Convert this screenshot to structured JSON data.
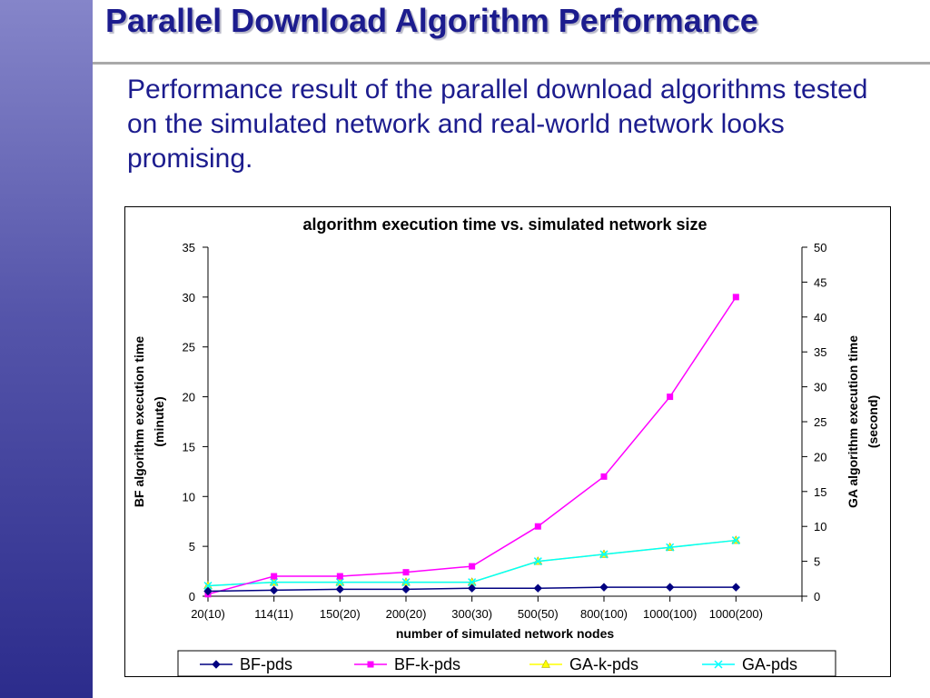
{
  "slide": {
    "title": "Parallel Download Algorithm Performance",
    "body": "Performance result of the parallel download algorithms tested on the simulated network and real-world network looks promising."
  },
  "chart_data": {
    "type": "line",
    "title": "algorithm execution time vs. simulated network size",
    "xlabel": "number of simulated network nodes",
    "ylabel_left": [
      "BF algorithm execution time",
      "(minute)"
    ],
    "ylabel_right": [
      "GA algorithm execution time",
      "(second)"
    ],
    "categories": [
      "20(10)",
      "114(11)",
      "150(20)",
      "200(20)",
      "300(30)",
      "500(50)",
      "800(100)",
      "1000(100)",
      "1000(200)"
    ],
    "ylim_left": [
      0,
      35
    ],
    "yticks_left": [
      0,
      5,
      10,
      15,
      20,
      25,
      30,
      35
    ],
    "ylim_right": [
      0,
      50
    ],
    "yticks_right": [
      0,
      5,
      10,
      15,
      20,
      25,
      30,
      35,
      40,
      45,
      50
    ],
    "grid": false,
    "legend_position": "bottom",
    "series": [
      {
        "name": "BF-pds",
        "axis": "left",
        "marker": "diamond",
        "color": "#000080",
        "values": [
          0.5,
          0.6,
          0.7,
          0.7,
          0.8,
          0.8,
          0.9,
          0.9,
          0.9
        ]
      },
      {
        "name": "BF-k-pds",
        "axis": "left",
        "marker": "square",
        "color": "#ff00ff",
        "values": [
          0.2,
          2.0,
          2.0,
          2.4,
          3.0,
          7.0,
          12.0,
          20.0,
          30.0
        ]
      },
      {
        "name": "GA-k-pds",
        "axis": "right",
        "marker": "triangle",
        "color": "#ffff00",
        "values": [
          1.5,
          2.0,
          2.0,
          2.0,
          2.0,
          5.0,
          6.0,
          7.0,
          8.0
        ]
      },
      {
        "name": "GA-pds",
        "axis": "right",
        "marker": "x",
        "color": "#00ffff",
        "values": [
          1.5,
          2.0,
          2.0,
          2.0,
          2.0,
          5.0,
          6.0,
          7.0,
          8.0
        ]
      }
    ]
  }
}
